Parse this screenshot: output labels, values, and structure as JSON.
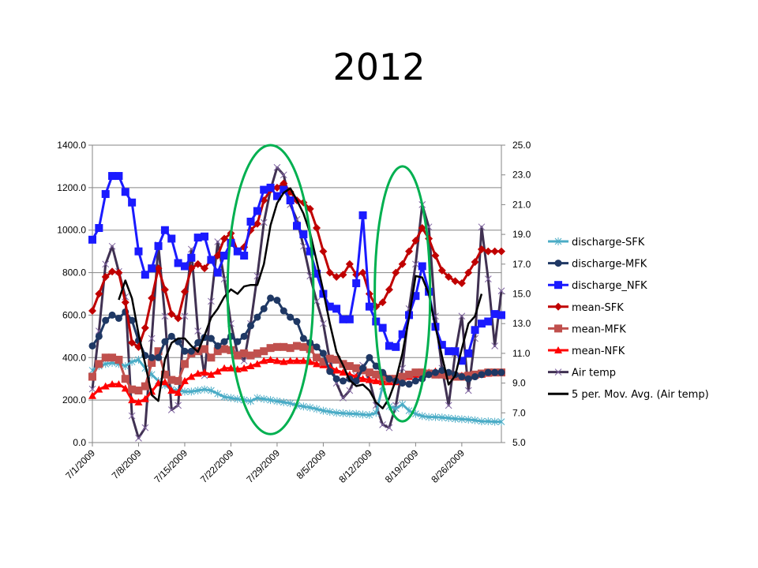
{
  "title": "2012",
  "chart_data": {
    "type": "line",
    "title": "2012",
    "x_start": "7/1/2009",
    "x_tick_labels": [
      "7/1/2009",
      "7/8/2009",
      "7/15/2009",
      "7/22/2009",
      "7/29/2009",
      "8/5/2009",
      "8/12/2009",
      "8/19/2009",
      "8/26/2009"
    ],
    "x_tick_interval_days": 7,
    "x_range_days": [
      0,
      62
    ],
    "y_left": {
      "range": [
        0,
        1400
      ],
      "ticks": [
        "0.0",
        "200.0",
        "400.0",
        "600.0",
        "800.0",
        "1000.0",
        "1200.0",
        "1400.0"
      ]
    },
    "y_right": {
      "range": [
        5,
        25
      ],
      "ticks": [
        "5.0",
        "7.0",
        "9.0",
        "11.0",
        "13.0",
        "15.0",
        "17.0",
        "19.0",
        "21.0",
        "23.0",
        "25.0"
      ]
    },
    "grid": "horizontal",
    "legend_position": "right",
    "series": [
      {
        "name": "discharge-SFK",
        "axis": "left",
        "color": "#4bacc6",
        "marker": "star",
        "values": [
          340,
          360,
          370,
          375,
          370,
          360,
          380,
          390,
          350,
          320,
          290,
          270,
          250,
          245,
          240,
          240,
          245,
          250,
          245,
          230,
          215,
          210,
          205,
          200,
          195,
          210,
          205,
          200,
          195,
          190,
          185,
          175,
          170,
          165,
          158,
          150,
          145,
          140,
          138,
          136,
          135,
          132,
          130,
          140,
          265,
          170,
          160,
          180,
          150,
          135,
          125,
          120,
          120,
          118,
          115,
          112,
          110,
          108,
          105,
          100,
          100,
          98,
          98
        ]
      },
      {
        "name": "discharge-MFK",
        "axis": "left",
        "color": "#1f3864",
        "marker": "circle",
        "values": [
          455,
          500,
          575,
          600,
          585,
          615,
          575,
          480,
          410,
          400,
          400,
          475,
          500,
          475,
          430,
          430,
          470,
          495,
          490,
          455,
          475,
          500,
          475,
          500,
          550,
          590,
          630,
          680,
          670,
          620,
          590,
          570,
          490,
          470,
          450,
          420,
          335,
          300,
          290,
          300,
          290,
          350,
          400,
          360,
          330,
          300,
          290,
          280,
          275,
          290,
          300,
          320,
          330,
          340,
          330,
          320,
          310,
          300,
          310,
          320,
          330,
          330,
          330
        ]
      },
      {
        "name": "discharge_NFK",
        "axis": "left",
        "color": "#1a1aff",
        "marker": "square",
        "values": [
          955,
          1010,
          1170,
          1255,
          1255,
          1180,
          1130,
          900,
          790,
          820,
          925,
          1000,
          960,
          845,
          830,
          870,
          965,
          970,
          860,
          800,
          880,
          940,
          900,
          880,
          1040,
          1090,
          1190,
          1200,
          1160,
          1190,
          1140,
          1020,
          980,
          900,
          795,
          700,
          640,
          630,
          580,
          580,
          750,
          1070,
          640,
          570,
          540,
          455,
          450,
          510,
          600,
          690,
          830,
          710,
          545,
          460,
          430,
          430,
          385,
          420,
          530,
          560,
          570,
          605,
          600
        ]
      },
      {
        "name": "mean-SFK",
        "axis": "left",
        "color": "#c00000",
        "marker": "diamond",
        "values": [
          620,
          700,
          780,
          805,
          800,
          660,
          470,
          450,
          540,
          680,
          820,
          720,
          605,
          585,
          710,
          820,
          840,
          820,
          860,
          880,
          960,
          985,
          900,
          920,
          1000,
          1030,
          1140,
          1190,
          1200,
          1220,
          1180,
          1140,
          1130,
          1100,
          1010,
          900,
          800,
          780,
          790,
          840,
          790,
          800,
          700,
          640,
          660,
          720,
          800,
          840,
          900,
          950,
          1010,
          960,
          880,
          810,
          780,
          760,
          750,
          800,
          850,
          910,
          900,
          900,
          900
        ]
      },
      {
        "name": "mean-MFK",
        "axis": "left",
        "color": "#c0504d",
        "marker": "square",
        "values": [
          310,
          370,
          400,
          400,
          390,
          300,
          250,
          245,
          265,
          375,
          430,
          320,
          295,
          290,
          370,
          420,
          430,
          440,
          400,
          430,
          440,
          435,
          410,
          420,
          410,
          420,
          430,
          445,
          450,
          450,
          445,
          455,
          450,
          440,
          400,
          380,
          395,
          390,
          370,
          360,
          350,
          340,
          330,
          320,
          310,
          300,
          300,
          310,
          320,
          330,
          330,
          325,
          320,
          320,
          315,
          310,
          310,
          315,
          320,
          325,
          330,
          330,
          330
        ]
      },
      {
        "name": "mean-NFK",
        "axis": "left",
        "color": "#ff0000",
        "marker": "triangle",
        "values": [
          220,
          250,
          265,
          275,
          275,
          255,
          200,
          190,
          205,
          240,
          280,
          285,
          245,
          235,
          290,
          310,
          325,
          330,
          320,
          335,
          350,
          350,
          345,
          350,
          360,
          370,
          385,
          390,
          385,
          380,
          385,
          385,
          385,
          380,
          370,
          365,
          355,
          340,
          330,
          320,
          310,
          300,
          295,
          290,
          285,
          285,
          285,
          295,
          310,
          320,
          325,
          330,
          335,
          330,
          325,
          320,
          315,
          310,
          315,
          320,
          325,
          330,
          330
        ]
      },
      {
        "name": "Air temp",
        "axis": "right",
        "color": "#403152",
        "marker": "x",
        "values": [
          8.6,
          12.5,
          17.0,
          18.2,
          16.5,
          14.8,
          6.8,
          5.3,
          6.0,
          12.0,
          18.3,
          13.5,
          7.2,
          7.5,
          13.5,
          18.0,
          12.5,
          9.5,
          14.5,
          18.5,
          16.0,
          13.0,
          11.0,
          10.5,
          13.0,
          16.2,
          19.8,
          22.0,
          23.5,
          23.0,
          21.0,
          20.0,
          18.2,
          16.2,
          14.5,
          13.0,
          10.5,
          9.0,
          8.0,
          8.5,
          9.5,
          10.2,
          9.2,
          7.5,
          6.2,
          6.0,
          7.5,
          10.0,
          14.0,
          17.0,
          21.0,
          19.5,
          13.5,
          10.0,
          7.5,
          11.0,
          13.5,
          8.5,
          12.0,
          19.5,
          16.0,
          11.5,
          15.2
        ]
      },
      {
        "name": "5 per. Mov. Avg. (Air temp)",
        "axis": "right",
        "color": "#000000",
        "marker": "none",
        "start_index": 4,
        "values": [
          14.6,
          15.9,
          14.7,
          12.3,
          10.3,
          8.2,
          7.8,
          10.6,
          11.7,
          12.0,
          12.0,
          11.5,
          11.1,
          12.2,
          13.4,
          14.0,
          14.8,
          15.3,
          15.0,
          15.5,
          15.6,
          15.6,
          17.0,
          19.6,
          21.1,
          21.8,
          22.1,
          21.3,
          20.4,
          19.1,
          17.2,
          15.2,
          13.0,
          11.1,
          10.2,
          9.2,
          8.8,
          8.9,
          8.5,
          7.7,
          7.3,
          8.0,
          9.2,
          11.0,
          13.4,
          16.2,
          16.1,
          15.0,
          12.8,
          10.8,
          8.9,
          9.5,
          11.3,
          13.0,
          13.5,
          15.0
        ]
      }
    ],
    "annotations": [
      {
        "type": "ellipse",
        "color": "#00b050",
        "center_day": 27,
        "center_y_left": 720,
        "span_days": 6.5,
        "span_y_left": 680
      },
      {
        "type": "ellipse",
        "color": "#00b050",
        "center_day": 47,
        "center_y_left": 700,
        "span_days": 4.2,
        "span_y_left": 600
      }
    ]
  }
}
